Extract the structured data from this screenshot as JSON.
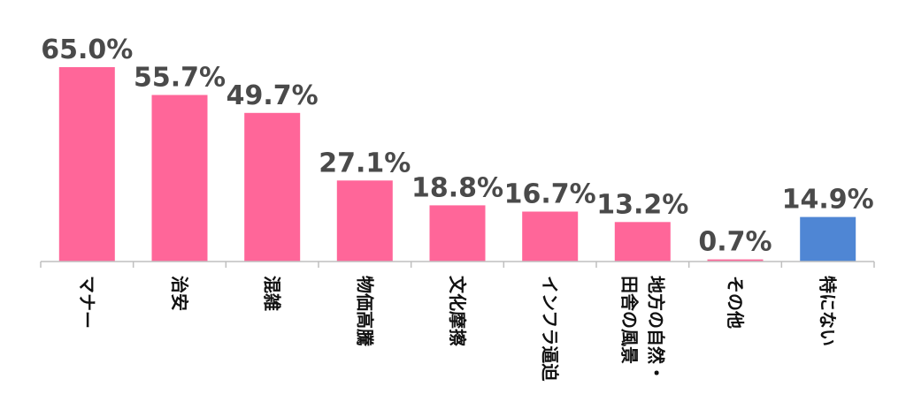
{
  "chart_data": {
    "type": "bar",
    "categories": [
      "マナー",
      "治安",
      "混雑",
      "物価高騰",
      "文化摩擦",
      "インフラ逼迫",
      "地方の自然・田舎の風景",
      "その他",
      "特にない"
    ],
    "category_lines": [
      [
        "マナー"
      ],
      [
        "治安"
      ],
      [
        "混雑"
      ],
      [
        "物価高騰"
      ],
      [
        "文化摩擦"
      ],
      [
        "インフラ逼迫"
      ],
      [
        "地方の自然・",
        "田舎の風景"
      ],
      [
        "その他"
      ],
      [
        "特にない"
      ]
    ],
    "values": [
      65.0,
      55.7,
      49.7,
      27.1,
      18.8,
      16.7,
      13.2,
      0.7,
      14.9
    ],
    "value_labels": [
      "65.0%",
      "55.7%",
      "49.7%",
      "27.1%",
      "18.8%",
      "16.7%",
      "13.2%",
      "0.7%",
      "14.9%"
    ],
    "bar_colors": [
      "#ff6699",
      "#ff6699",
      "#ff6699",
      "#ff6699",
      "#ff6699",
      "#ff6699",
      "#ff6699",
      "#ff6699",
      "#4f86d4"
    ],
    "title": "",
    "xlabel": "",
    "ylabel": "",
    "ylim": [
      0,
      65
    ],
    "grid": false,
    "legend": "none"
  }
}
